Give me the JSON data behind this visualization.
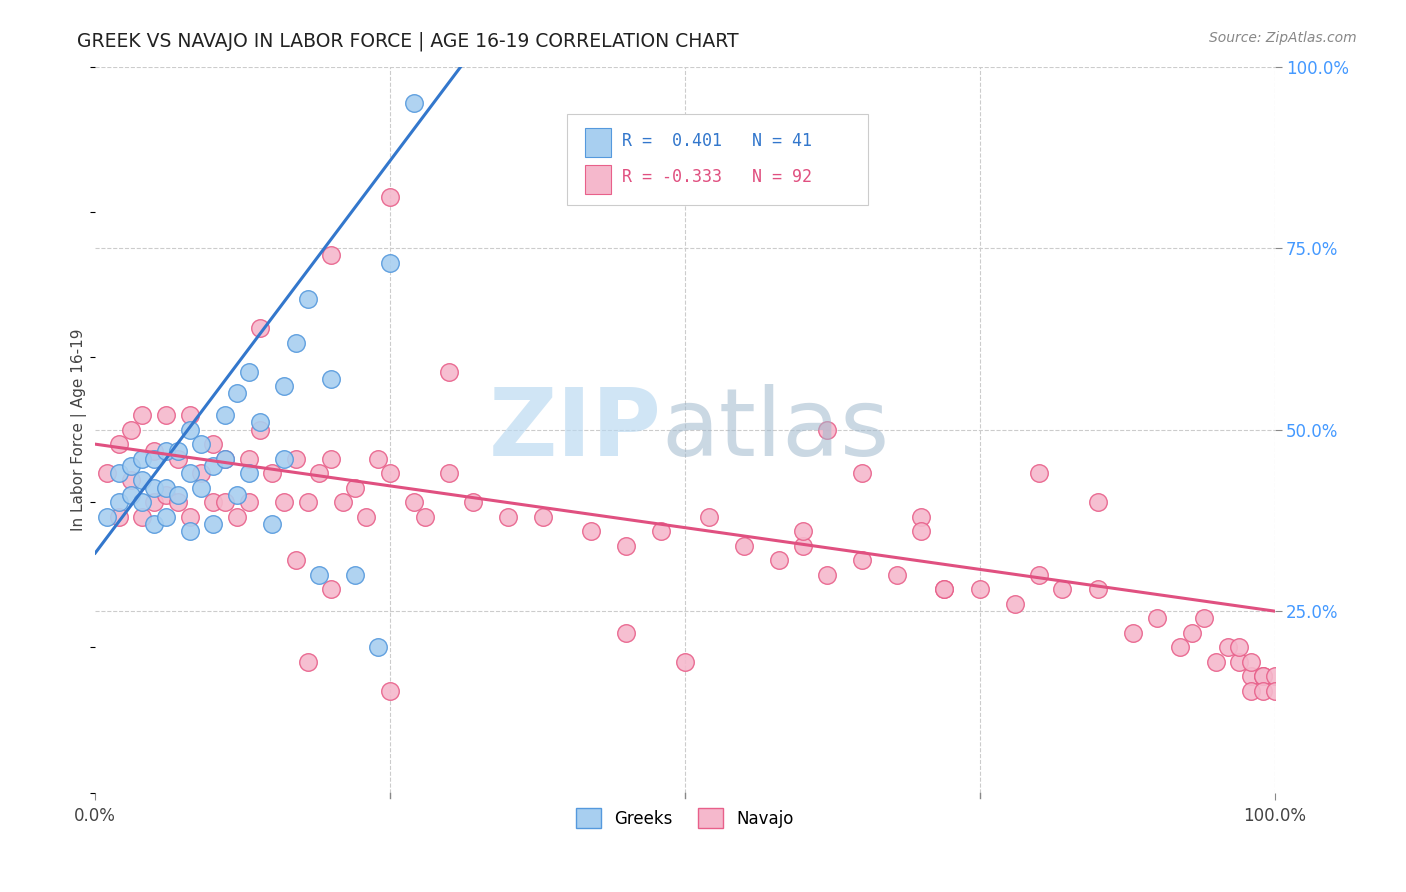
{
  "title": "GREEK VS NAVAJO IN LABOR FORCE | AGE 16-19 CORRELATION CHART",
  "source": "Source: ZipAtlas.com",
  "ylabel": "In Labor Force | Age 16-19",
  "xlim": [
    0.0,
    1.0
  ],
  "ylim": [
    0.0,
    1.0
  ],
  "watermark_zip": "ZIP",
  "watermark_atlas": "atlas",
  "legend_text_greek": "R =  0.401   N = 41",
  "legend_text_navajo": "R = -0.333   N = 92",
  "greek_fill": "#a8cff0",
  "greek_edge": "#5599dd",
  "navajo_fill": "#f5b8cc",
  "navajo_edge": "#e8608a",
  "greek_line_color": "#3377cc",
  "navajo_line_color": "#e05080",
  "greek_scatter_x": [
    0.01,
    0.02,
    0.02,
    0.03,
    0.03,
    0.04,
    0.04,
    0.04,
    0.05,
    0.05,
    0.05,
    0.06,
    0.06,
    0.06,
    0.07,
    0.07,
    0.08,
    0.08,
    0.08,
    0.09,
    0.09,
    0.1,
    0.1,
    0.11,
    0.11,
    0.12,
    0.12,
    0.13,
    0.13,
    0.14,
    0.15,
    0.16,
    0.16,
    0.17,
    0.18,
    0.19,
    0.2,
    0.22,
    0.24,
    0.25,
    0.27
  ],
  "greek_scatter_y": [
    0.38,
    0.4,
    0.44,
    0.41,
    0.45,
    0.4,
    0.43,
    0.46,
    0.37,
    0.42,
    0.46,
    0.38,
    0.42,
    0.47,
    0.41,
    0.47,
    0.36,
    0.44,
    0.5,
    0.42,
    0.48,
    0.37,
    0.45,
    0.46,
    0.52,
    0.41,
    0.55,
    0.44,
    0.58,
    0.51,
    0.37,
    0.46,
    0.56,
    0.62,
    0.68,
    0.3,
    0.57,
    0.3,
    0.2,
    0.73,
    0.95
  ],
  "navajo_scatter_x": [
    0.01,
    0.02,
    0.02,
    0.03,
    0.03,
    0.04,
    0.04,
    0.05,
    0.05,
    0.06,
    0.06,
    0.07,
    0.07,
    0.08,
    0.08,
    0.09,
    0.1,
    0.1,
    0.11,
    0.11,
    0.12,
    0.13,
    0.13,
    0.14,
    0.15,
    0.16,
    0.17,
    0.18,
    0.19,
    0.2,
    0.21,
    0.22,
    0.23,
    0.24,
    0.25,
    0.27,
    0.28,
    0.3,
    0.32,
    0.35,
    0.38,
    0.42,
    0.45,
    0.48,
    0.52,
    0.55,
    0.58,
    0.6,
    0.62,
    0.65,
    0.68,
    0.7,
    0.72,
    0.75,
    0.78,
    0.8,
    0.82,
    0.85,
    0.88,
    0.9,
    0.92,
    0.93,
    0.94,
    0.95,
    0.96,
    0.97,
    0.97,
    0.98,
    0.98,
    0.98,
    0.99,
    0.99,
    0.99,
    1.0,
    1.0,
    0.14,
    0.2,
    0.25,
    0.3,
    0.2,
    0.25,
    0.17,
    0.18,
    0.62,
    0.65,
    0.7,
    0.72,
    0.45,
    0.5,
    0.6,
    0.8,
    0.85
  ],
  "navajo_scatter_y": [
    0.44,
    0.38,
    0.48,
    0.43,
    0.5,
    0.38,
    0.52,
    0.4,
    0.47,
    0.41,
    0.52,
    0.4,
    0.46,
    0.38,
    0.52,
    0.44,
    0.4,
    0.48,
    0.4,
    0.46,
    0.38,
    0.4,
    0.46,
    0.5,
    0.44,
    0.4,
    0.46,
    0.4,
    0.44,
    0.46,
    0.4,
    0.42,
    0.38,
    0.46,
    0.44,
    0.4,
    0.38,
    0.44,
    0.4,
    0.38,
    0.38,
    0.36,
    0.34,
    0.36,
    0.38,
    0.34,
    0.32,
    0.34,
    0.3,
    0.32,
    0.3,
    0.38,
    0.28,
    0.28,
    0.26,
    0.3,
    0.28,
    0.28,
    0.22,
    0.24,
    0.2,
    0.22,
    0.24,
    0.18,
    0.2,
    0.18,
    0.2,
    0.16,
    0.18,
    0.14,
    0.16,
    0.16,
    0.14,
    0.16,
    0.14,
    0.64,
    0.74,
    0.82,
    0.58,
    0.28,
    0.14,
    0.32,
    0.18,
    0.5,
    0.44,
    0.36,
    0.28,
    0.22,
    0.18,
    0.36,
    0.44,
    0.4
  ],
  "greek_trend_x": [
    0.0,
    0.31
  ],
  "greek_trend_y": [
    0.33,
    1.0
  ],
  "navajo_trend_x": [
    0.0,
    1.0
  ],
  "navajo_trend_y": [
    0.48,
    0.25
  ]
}
